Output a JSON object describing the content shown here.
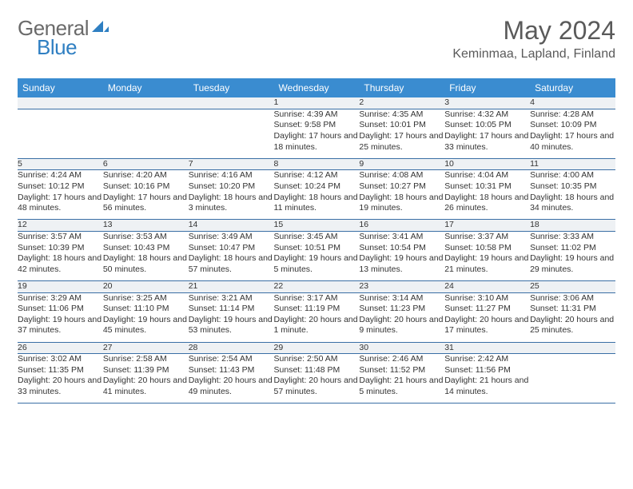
{
  "logo": {
    "general": "General",
    "blue": "Blue"
  },
  "title": "May 2024",
  "location": "Keminmaa, Lapland, Finland",
  "colors": {
    "header_bg": "#3a8cd0",
    "header_text": "#ffffff",
    "daynum_bg": "#eef1f4",
    "border": "#3a6fa5",
    "text": "#333333",
    "logo_gray": "#6a6a6a",
    "logo_blue": "#2f7fc2"
  },
  "daysOfWeek": [
    "Sunday",
    "Monday",
    "Tuesday",
    "Wednesday",
    "Thursday",
    "Friday",
    "Saturday"
  ],
  "weeks": [
    {
      "nums": [
        "",
        "",
        "",
        "1",
        "2",
        "3",
        "4"
      ],
      "cells": [
        {
          "sunrise": "",
          "sunset": "",
          "daylight": ""
        },
        {
          "sunrise": "",
          "sunset": "",
          "daylight": ""
        },
        {
          "sunrise": "",
          "sunset": "",
          "daylight": ""
        },
        {
          "sunrise": "Sunrise: 4:39 AM",
          "sunset": "Sunset: 9:58 PM",
          "daylight": "Daylight: 17 hours and 18 minutes."
        },
        {
          "sunrise": "Sunrise: 4:35 AM",
          "sunset": "Sunset: 10:01 PM",
          "daylight": "Daylight: 17 hours and 25 minutes."
        },
        {
          "sunrise": "Sunrise: 4:32 AM",
          "sunset": "Sunset: 10:05 PM",
          "daylight": "Daylight: 17 hours and 33 minutes."
        },
        {
          "sunrise": "Sunrise: 4:28 AM",
          "sunset": "Sunset: 10:09 PM",
          "daylight": "Daylight: 17 hours and 40 minutes."
        }
      ]
    },
    {
      "nums": [
        "5",
        "6",
        "7",
        "8",
        "9",
        "10",
        "11"
      ],
      "cells": [
        {
          "sunrise": "Sunrise: 4:24 AM",
          "sunset": "Sunset: 10:12 PM",
          "daylight": "Daylight: 17 hours and 48 minutes."
        },
        {
          "sunrise": "Sunrise: 4:20 AM",
          "sunset": "Sunset: 10:16 PM",
          "daylight": "Daylight: 17 hours and 56 minutes."
        },
        {
          "sunrise": "Sunrise: 4:16 AM",
          "sunset": "Sunset: 10:20 PM",
          "daylight": "Daylight: 18 hours and 3 minutes."
        },
        {
          "sunrise": "Sunrise: 4:12 AM",
          "sunset": "Sunset: 10:24 PM",
          "daylight": "Daylight: 18 hours and 11 minutes."
        },
        {
          "sunrise": "Sunrise: 4:08 AM",
          "sunset": "Sunset: 10:27 PM",
          "daylight": "Daylight: 18 hours and 19 minutes."
        },
        {
          "sunrise": "Sunrise: 4:04 AM",
          "sunset": "Sunset: 10:31 PM",
          "daylight": "Daylight: 18 hours and 26 minutes."
        },
        {
          "sunrise": "Sunrise: 4:00 AM",
          "sunset": "Sunset: 10:35 PM",
          "daylight": "Daylight: 18 hours and 34 minutes."
        }
      ]
    },
    {
      "nums": [
        "12",
        "13",
        "14",
        "15",
        "16",
        "17",
        "18"
      ],
      "cells": [
        {
          "sunrise": "Sunrise: 3:57 AM",
          "sunset": "Sunset: 10:39 PM",
          "daylight": "Daylight: 18 hours and 42 minutes."
        },
        {
          "sunrise": "Sunrise: 3:53 AM",
          "sunset": "Sunset: 10:43 PM",
          "daylight": "Daylight: 18 hours and 50 minutes."
        },
        {
          "sunrise": "Sunrise: 3:49 AM",
          "sunset": "Sunset: 10:47 PM",
          "daylight": "Daylight: 18 hours and 57 minutes."
        },
        {
          "sunrise": "Sunrise: 3:45 AM",
          "sunset": "Sunset: 10:51 PM",
          "daylight": "Daylight: 19 hours and 5 minutes."
        },
        {
          "sunrise": "Sunrise: 3:41 AM",
          "sunset": "Sunset: 10:54 PM",
          "daylight": "Daylight: 19 hours and 13 minutes."
        },
        {
          "sunrise": "Sunrise: 3:37 AM",
          "sunset": "Sunset: 10:58 PM",
          "daylight": "Daylight: 19 hours and 21 minutes."
        },
        {
          "sunrise": "Sunrise: 3:33 AM",
          "sunset": "Sunset: 11:02 PM",
          "daylight": "Daylight: 19 hours and 29 minutes."
        }
      ]
    },
    {
      "nums": [
        "19",
        "20",
        "21",
        "22",
        "23",
        "24",
        "25"
      ],
      "cells": [
        {
          "sunrise": "Sunrise: 3:29 AM",
          "sunset": "Sunset: 11:06 PM",
          "daylight": "Daylight: 19 hours and 37 minutes."
        },
        {
          "sunrise": "Sunrise: 3:25 AM",
          "sunset": "Sunset: 11:10 PM",
          "daylight": "Daylight: 19 hours and 45 minutes."
        },
        {
          "sunrise": "Sunrise: 3:21 AM",
          "sunset": "Sunset: 11:14 PM",
          "daylight": "Daylight: 19 hours and 53 minutes."
        },
        {
          "sunrise": "Sunrise: 3:17 AM",
          "sunset": "Sunset: 11:19 PM",
          "daylight": "Daylight: 20 hours and 1 minute."
        },
        {
          "sunrise": "Sunrise: 3:14 AM",
          "sunset": "Sunset: 11:23 PM",
          "daylight": "Daylight: 20 hours and 9 minutes."
        },
        {
          "sunrise": "Sunrise: 3:10 AM",
          "sunset": "Sunset: 11:27 PM",
          "daylight": "Daylight: 20 hours and 17 minutes."
        },
        {
          "sunrise": "Sunrise: 3:06 AM",
          "sunset": "Sunset: 11:31 PM",
          "daylight": "Daylight: 20 hours and 25 minutes."
        }
      ]
    },
    {
      "nums": [
        "26",
        "27",
        "28",
        "29",
        "30",
        "31",
        ""
      ],
      "cells": [
        {
          "sunrise": "Sunrise: 3:02 AM",
          "sunset": "Sunset: 11:35 PM",
          "daylight": "Daylight: 20 hours and 33 minutes."
        },
        {
          "sunrise": "Sunrise: 2:58 AM",
          "sunset": "Sunset: 11:39 PM",
          "daylight": "Daylight: 20 hours and 41 minutes."
        },
        {
          "sunrise": "Sunrise: 2:54 AM",
          "sunset": "Sunset: 11:43 PM",
          "daylight": "Daylight: 20 hours and 49 minutes."
        },
        {
          "sunrise": "Sunrise: 2:50 AM",
          "sunset": "Sunset: 11:48 PM",
          "daylight": "Daylight: 20 hours and 57 minutes."
        },
        {
          "sunrise": "Sunrise: 2:46 AM",
          "sunset": "Sunset: 11:52 PM",
          "daylight": "Daylight: 21 hours and 5 minutes."
        },
        {
          "sunrise": "Sunrise: 2:42 AM",
          "sunset": "Sunset: 11:56 PM",
          "daylight": "Daylight: 21 hours and 14 minutes."
        },
        {
          "sunrise": "",
          "sunset": "",
          "daylight": ""
        }
      ]
    }
  ]
}
